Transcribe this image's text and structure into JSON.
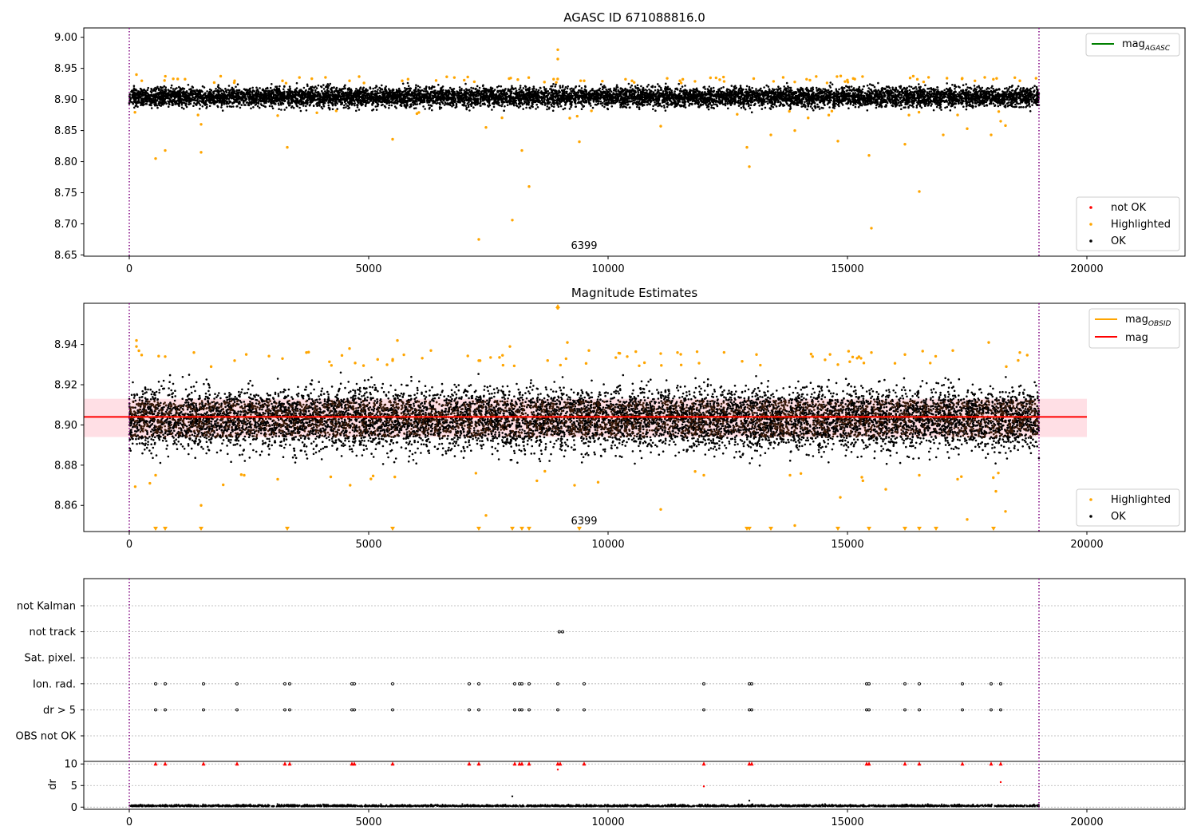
{
  "colors": {
    "ok": "#000000",
    "highlighted": "#ffa500",
    "not_ok": "#ff0000",
    "mag_line": "#ff0000",
    "mag_band": "#ffc0cb",
    "mag_agasc": "#008000",
    "mag_obsid": "#ffa500",
    "obs_boundary": "#800080"
  },
  "chart_data": [
    {
      "type": "scatter",
      "title": "AGASC ID 671088816.0",
      "xlim": [
        -950,
        22050
      ],
      "ylim": [
        8.648,
        9.015
      ],
      "xticks": [
        0,
        5000,
        10000,
        15000,
        20000
      ],
      "xtick_labels": [
        "0",
        "5000",
        "10000",
        "15000",
        "20000"
      ],
      "yticks": [
        8.65,
        8.7,
        8.75,
        8.8,
        8.85,
        8.9,
        8.95,
        9.0
      ],
      "ytick_labels": [
        "8.65",
        "8.70",
        "8.75",
        "8.80",
        "8.85",
        "8.90",
        "8.95",
        "9.00"
      ],
      "obs_label": "6399",
      "obs_label_x": 9500,
      "obs_boundaries": [
        0,
        19000
      ],
      "ok_band": {
        "x_range": [
          0,
          19000
        ],
        "center": 8.904,
        "half_width": 0.02,
        "point_count": 9000
      },
      "series": [
        {
          "name": "not OK",
          "points": []
        },
        {
          "name": "Highlighted",
          "points": [
            [
              150,
              8.94
            ],
            [
              550,
              8.805
            ],
            [
              750,
              8.818
            ],
            [
              1500,
              8.815
            ],
            [
              1500,
              8.86
            ],
            [
              2200,
              8.93
            ],
            [
              3100,
              8.874
            ],
            [
              3300,
              8.823
            ],
            [
              3200,
              8.93
            ],
            [
              4600,
              8.93
            ],
            [
              5500,
              8.836
            ],
            [
              5700,
              8.93
            ],
            [
              7300,
              8.675
            ],
            [
              7450,
              8.855
            ],
            [
              8000,
              8.706
            ],
            [
              8200,
              8.818
            ],
            [
              8350,
              8.76
            ],
            [
              8950,
              8.98
            ],
            [
              8950,
              8.965
            ],
            [
              9200,
              8.87
            ],
            [
              9400,
              8.832
            ],
            [
              9500,
              8.93
            ],
            [
              10500,
              8.93
            ],
            [
              11100,
              8.857
            ],
            [
              11500,
              8.93
            ],
            [
              12900,
              8.823
            ],
            [
              12950,
              8.792
            ],
            [
              13400,
              8.843
            ],
            [
              13900,
              8.85
            ],
            [
              14800,
              8.833
            ],
            [
              15500,
              8.693
            ],
            [
              15450,
              8.81
            ],
            [
              16200,
              8.828
            ],
            [
              16500,
              8.752
            ],
            [
              17000,
              8.843
            ],
            [
              17500,
              8.853
            ],
            [
              17300,
              8.875
            ],
            [
              18000,
              8.843
            ],
            [
              18200,
              8.865
            ],
            [
              18300,
              8.858
            ],
            [
              18600,
              8.93
            ]
          ]
        },
        {
          "name": "OK",
          "points": []
        }
      ],
      "lines": [
        {
          "name": "mag",
          "subscript": "AGASC"
        }
      ],
      "legend_lines_loc": "upper right",
      "legend_points_loc": "lower right"
    },
    {
      "type": "scatter",
      "title": "Magnitude Estimates",
      "xlim": [
        -950,
        22050
      ],
      "ylim": [
        8.847,
        8.9605
      ],
      "xticks": [
        0,
        5000,
        10000,
        15000,
        20000
      ],
      "xtick_labels": [
        "0",
        "5000",
        "10000",
        "15000",
        "20000"
      ],
      "yticks": [
        8.86,
        8.88,
        8.9,
        8.92,
        8.94
      ],
      "ytick_labels": [
        "8.86",
        "8.88",
        "8.90",
        "8.92",
        "8.94"
      ],
      "obs_label": "6399",
      "obs_label_x": 9500,
      "obs_boundaries": [
        0,
        19000
      ],
      "mag": {
        "value": 8.904,
        "x_range": [
          -950,
          20000
        ],
        "band": [
          8.894,
          8.913
        ]
      },
      "mag_obsid": {
        "value": 8.904,
        "x_range": [
          0,
          19000
        ]
      },
      "ok_band": {
        "x_range": [
          0,
          19000
        ],
        "center": 8.903,
        "half_width": 0.02,
        "point_count": 9000
      },
      "series": [
        {
          "name": "Highlighted",
          "points": [
            [
              150,
              8.942
            ],
            [
              150,
              8.939
            ],
            [
              550,
              8.875
            ],
            [
              750,
              8.934
            ],
            [
              1350,
              8.936
            ],
            [
              1500,
              8.86
            ],
            [
              2200,
              8.932
            ],
            [
              2400,
              8.875
            ],
            [
              3100,
              8.873
            ],
            [
              3200,
              8.933
            ],
            [
              3700,
              8.936
            ],
            [
              4600,
              8.938
            ],
            [
              5500,
              8.932
            ],
            [
              5600,
              8.942
            ],
            [
              6300,
              8.937
            ],
            [
              7300,
              8.932
            ],
            [
              7450,
              8.855
            ],
            [
              7950,
              8.939
            ],
            [
              8950,
              8.958
            ],
            [
              9150,
              8.941
            ],
            [
              9300,
              8.87
            ],
            [
              9600,
              8.937
            ],
            [
              10400,
              8.934
            ],
            [
              11100,
              8.858
            ],
            [
              11450,
              8.936
            ],
            [
              12000,
              8.875
            ],
            [
              13100,
              8.935
            ],
            [
              13800,
              8.875
            ],
            [
              13900,
              8.85
            ],
            [
              14800,
              8.93
            ],
            [
              14850,
              8.864
            ],
            [
              15300,
              8.874
            ],
            [
              15500,
              8.936
            ],
            [
              15800,
              8.868
            ],
            [
              16200,
              8.935
            ],
            [
              16500,
              8.875
            ],
            [
              17200,
              8.937
            ],
            [
              17300,
              8.873
            ],
            [
              17500,
              8.853
            ],
            [
              17950,
              8.941
            ],
            [
              18100,
              8.867
            ],
            [
              18300,
              8.857
            ],
            [
              18600,
              8.936
            ]
          ]
        },
        {
          "name": "OK",
          "points": []
        }
      ],
      "clipped_low_x": [
        550,
        750,
        1500,
        3300,
        5500,
        7300,
        8000,
        8200,
        8350,
        9400,
        12900,
        12950,
        13400,
        14800,
        15450,
        16200,
        16500,
        16850,
        18050
      ],
      "lines": [
        {
          "name": "mag",
          "subscript": "OBSID"
        },
        {
          "name": "mag",
          "subscript": ""
        }
      ],
      "legend_lines_loc": "upper right",
      "legend_points_loc": "lower right"
    },
    {
      "type": "scatter",
      "xlim": [
        -950,
        22050
      ],
      "categories": [
        "not Kalman",
        "not track",
        "Sat. pixel.",
        "Ion. rad.",
        "dr > 5",
        "OBS not OK"
      ],
      "obs_boundaries": [
        0,
        19000
      ],
      "series": [
        {
          "name": "not Kalman",
          "x": []
        },
        {
          "name": "not track",
          "x": [
            8980,
            9050
          ]
        },
        {
          "name": "Sat. pixel.",
          "x": []
        },
        {
          "name": "Ion. rad.",
          "x": [
            550,
            750,
            1550,
            2250,
            3250,
            3350,
            4650,
            4700,
            5500,
            7100,
            7300,
            8050,
            8150,
            8200,
            8350,
            8950,
            9500,
            12000,
            12950,
            13000,
            15400,
            15450,
            16200,
            16500,
            17400,
            18000,
            18200
          ]
        },
        {
          "name": "dr > 5",
          "x": [
            550,
            750,
            1550,
            2250,
            3250,
            3350,
            4650,
            4700,
            5500,
            7100,
            7300,
            8050,
            8150,
            8200,
            8350,
            8950,
            9500,
            12000,
            12950,
            13000,
            15400,
            15450,
            16200,
            16500,
            17400,
            18000,
            18200
          ]
        },
        {
          "name": "OBS not OK",
          "x": []
        }
      ]
    },
    {
      "type": "scatter",
      "xlim": [
        -950,
        22050
      ],
      "ylim": [
        -0.5,
        10.6
      ],
      "ylabel": "dr",
      "xticks": [
        0,
        5000,
        10000,
        15000,
        20000
      ],
      "xtick_labels": [
        "0",
        "5000",
        "10000",
        "15000",
        "20000"
      ],
      "yticks": [
        0,
        5,
        10
      ],
      "ytick_labels": [
        "0",
        "5",
        "10"
      ],
      "obs_boundaries": [
        0,
        19000
      ],
      "clipped_high_x": [
        550,
        750,
        1550,
        2250,
        3250,
        3350,
        4650,
        4700,
        5500,
        7100,
        7300,
        8050,
        8150,
        8200,
        8350,
        8950,
        9000,
        9500,
        12000,
        12950,
        13000,
        15400,
        15450,
        16200,
        16500,
        17400,
        18000,
        18200
      ],
      "outliers": [
        [
          8950,
          8.7
        ],
        [
          12000,
          4.8
        ],
        [
          18200,
          5.8
        ],
        [
          8000,
          2.5
        ],
        [
          12950,
          1.5
        ]
      ],
      "baseline": {
        "x_range": [
          0,
          19000
        ],
        "center": 0.15,
        "spread": 0.3
      }
    }
  ]
}
